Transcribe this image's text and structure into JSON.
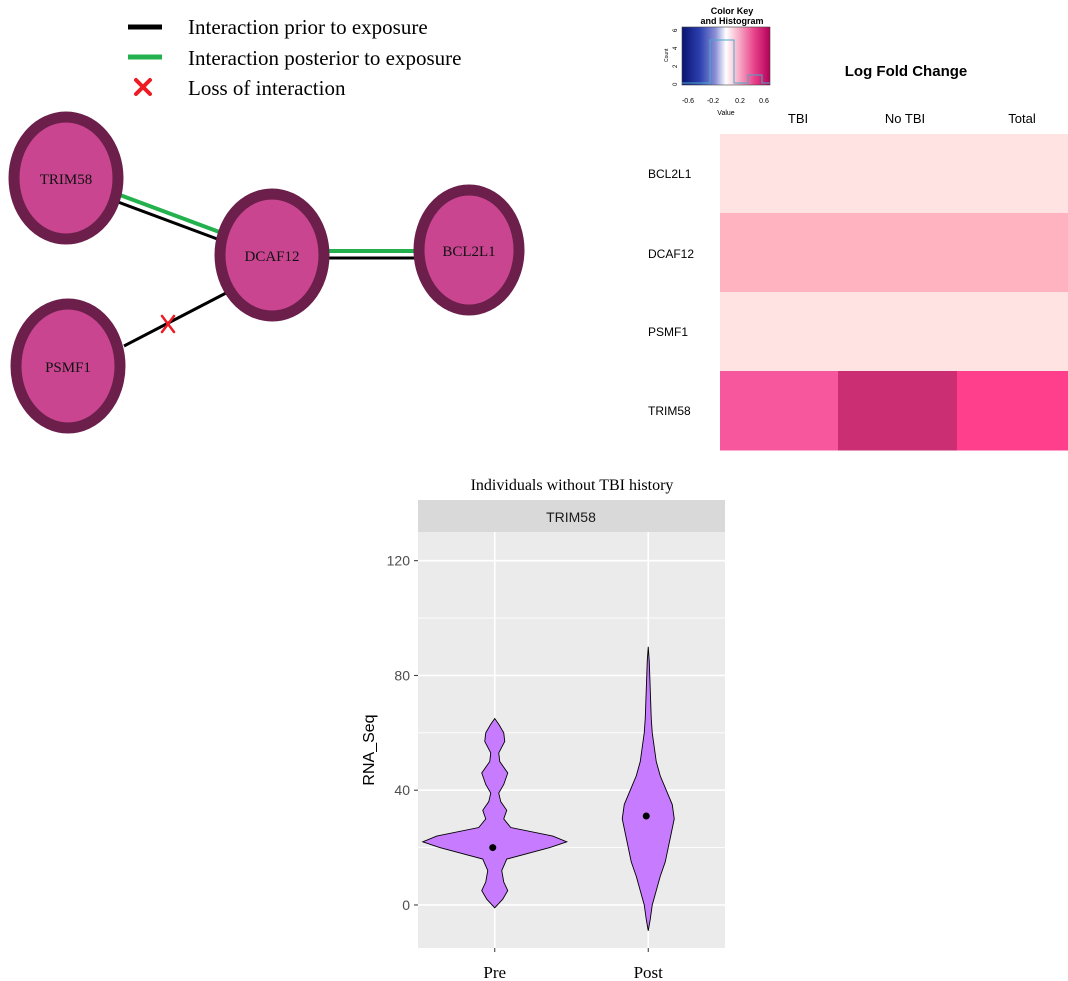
{
  "legend": {
    "items": [
      {
        "label": "Interaction prior to exposure",
        "color": "#000000",
        "symbol": "line"
      },
      {
        "label": "Interaction posterior to exposure",
        "color": "#22b14c",
        "symbol": "line"
      },
      {
        "label": "Loss of interaction",
        "color": "#ed1c24",
        "symbol": "cross"
      }
    ]
  },
  "network": {
    "colors": {
      "node_fill": "#c94590",
      "node_border": "#6b1f4a",
      "prior": "#000000",
      "posterior": "#22b14c",
      "loss": "#ed1c24"
    },
    "nodes": [
      {
        "id": "TRIM58",
        "label": "TRIM58"
      },
      {
        "id": "DCAF12",
        "label": "DCAF12"
      },
      {
        "id": "BCL2L1",
        "label": "BCL2L1"
      },
      {
        "id": "PSMF1",
        "label": "PSMF1"
      }
    ],
    "edges": [
      {
        "from": "TRIM58",
        "to": "DCAF12",
        "types": [
          "prior",
          "posterior"
        ]
      },
      {
        "from": "DCAF12",
        "to": "BCL2L1",
        "types": [
          "prior",
          "posterior"
        ]
      },
      {
        "from": "PSMF1",
        "to": "DCAF12",
        "types": [
          "prior",
          "loss"
        ]
      }
    ]
  },
  "heatmap": {
    "title": "Log Fold Change",
    "columns": [
      "TBI",
      "No TBI",
      "Total"
    ],
    "rows": [
      "BCL2L1",
      "DCAF12",
      "PSMF1",
      "TRIM58"
    ],
    "cell_colors": [
      [
        "#ffe3e3",
        "#ffe3e3",
        "#ffe3e3"
      ],
      [
        "#ffb3c1",
        "#ffb3c1",
        "#ffb3c1"
      ],
      [
        "#ffe3e3",
        "#ffe3e3",
        "#ffe3e3"
      ],
      [
        "#f7579d",
        "#cc2e73",
        "#ff3f8c"
      ]
    ],
    "key": {
      "title_line1": "Color Key",
      "title_line2": "and Histogram",
      "x_label": "Value",
      "y_label": "Count",
      "ticks": [
        "-0.6",
        "-0.2",
        "0.2",
        "0.6"
      ],
      "y_ticks": [
        "0",
        "2",
        "4",
        "6"
      ],
      "gradient": [
        "#0a1470",
        "#2b3fae",
        "#8a8fd6",
        "#ffffff",
        "#f7a9c4",
        "#e8438a",
        "#b3005a"
      ]
    }
  },
  "chart_data": {
    "type": "violin",
    "title": "Individuals without TBI history",
    "facet": "TRIM58",
    "xlabel": "",
    "ylabel": "RNA_Seq",
    "categories": [
      "Pre",
      "Post"
    ],
    "ylim": [
      -15,
      130
    ],
    "yticks": [
      0,
      40,
      80,
      120
    ],
    "grid": true,
    "fill": "#c77cff",
    "series": [
      {
        "category": "Pre",
        "mean": 20,
        "min": -1,
        "max": 65
      },
      {
        "category": "Post",
        "mean": 31,
        "min": -9,
        "max": 90
      }
    ]
  }
}
